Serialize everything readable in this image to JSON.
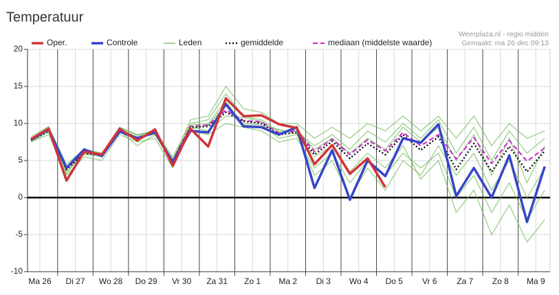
{
  "chart_data": {
    "type": "ensemble-line",
    "title": "Temperatuur",
    "source": "Weerplaza.nl - regio midden",
    "created": "Gemaakt: ma 26 dec 09:13",
    "x": [
      0.25,
      0.75,
      1.25,
      1.75,
      2.25,
      2.75,
      3.25,
      3.75,
      4.25,
      4.75,
      5.25,
      5.75,
      6.25,
      6.75,
      7.25,
      7.75,
      8.25,
      8.75,
      9.25,
      9.75,
      10.25,
      10.75,
      11.25,
      11.75,
      12.25,
      12.75,
      13.25,
      13.75,
      14.25,
      14.75
    ],
    "xlim": [
      0.15,
      14.9
    ],
    "xticks": [
      {
        "value": 0.5,
        "label": "Ma 26"
      },
      {
        "value": 1.5,
        "label": "Di 27"
      },
      {
        "value": 2.5,
        "label": "Wo 28"
      },
      {
        "value": 3.5,
        "label": "Do 29"
      },
      {
        "value": 4.5,
        "label": "Vr 30"
      },
      {
        "value": 5.5,
        "label": "Za 31"
      },
      {
        "value": 6.5,
        "label": "Zo 1"
      },
      {
        "value": 7.5,
        "label": "Ma 2"
      },
      {
        "value": 8.5,
        "label": "Di 3"
      },
      {
        "value": 9.5,
        "label": "Wo 4"
      },
      {
        "value": 10.5,
        "label": "Do 5"
      },
      {
        "value": 11.5,
        "label": "Vr 6"
      },
      {
        "value": 12.5,
        "label": "Za 7"
      },
      {
        "value": 13.5,
        "label": "Zo 8"
      },
      {
        "value": 14.5,
        "label": "Ma 9"
      }
    ],
    "day_lines": [
      1,
      2,
      3,
      4,
      5,
      6,
      7,
      8,
      9,
      10,
      11,
      12,
      13,
      14
    ],
    "ylim": [
      -10,
      20
    ],
    "yticks": [
      -10,
      -5,
      0,
      5,
      10,
      15,
      20
    ],
    "grid": true,
    "zero_line": true,
    "members": {
      "name": "Leden",
      "color": "#6dbb55",
      "series": [
        [
          8,
          9.5,
          4.5,
          6.5,
          6,
          9.5,
          8.5,
          9,
          5.5,
          10,
          10.5,
          14,
          11,
          10.5,
          9,
          9,
          7,
          8.5,
          6.5,
          9,
          7.5,
          10,
          8,
          10.5,
          6,
          9.5,
          5,
          9,
          6,
          8
        ],
        [
          7.5,
          8.5,
          3,
          5.5,
          5,
          8.5,
          7.5,
          8,
          4,
          9,
          8.5,
          10,
          9.5,
          9,
          7.5,
          8,
          4,
          6,
          2,
          5,
          3,
          6,
          4,
          6,
          0,
          3,
          -2,
          2,
          -3,
          1
        ],
        [
          8,
          9,
          4,
          6.5,
          6,
          9.2,
          8.2,
          9.2,
          5,
          10.5,
          11,
          15,
          12,
          11.5,
          10,
          10,
          8,
          9.5,
          8,
          10,
          9,
          11,
          9,
          11,
          8,
          11,
          7,
          10,
          8,
          9
        ],
        [
          7.8,
          9.3,
          3.5,
          6,
          5.5,
          9,
          7,
          8.5,
          4.5,
          9.2,
          9.8,
          12.5,
          10,
          9.8,
          8,
          8.5,
          5.5,
          7,
          3.5,
          6,
          4,
          7,
          2.5,
          5,
          -2,
          1,
          -5,
          -1,
          -6,
          -3
        ],
        [
          7.6,
          8.8,
          4.2,
          5.8,
          5.7,
          8.8,
          8,
          8.6,
          5.2,
          9.6,
          9,
          11,
          10.8,
          10.3,
          8.8,
          9.2,
          6.5,
          8,
          6,
          8,
          6.5,
          9.5,
          7.5,
          9.5,
          5,
          8.5,
          3,
          8,
          2,
          7
        ],
        [
          8.2,
          9.6,
          3.2,
          6.3,
          5.9,
          9.4,
          8.4,
          9,
          4.7,
          9.8,
          10,
          13,
          9.8,
          9.6,
          9.2,
          8.6,
          3,
          5,
          0,
          4,
          1,
          5,
          3,
          7,
          3,
          6,
          1,
          5,
          0,
          4
        ]
      ]
    },
    "series": [
      {
        "name": "Oper.",
        "color": "#d0343a",
        "style": "solid",
        "width": 3.5,
        "values": [
          7.9,
          9.3,
          2.3,
          6.2,
          5.8,
          9.3,
          7.7,
          9.2,
          4.3,
          9.3,
          6.9,
          13.4,
          11,
          11.1,
          9.9,
          9.4,
          4.5,
          7.1,
          3.2,
          5.3,
          1.4,
          null,
          null,
          null,
          null,
          null,
          null,
          null,
          null,
          null
        ]
      },
      {
        "name": "Controle",
        "color": "#3545c8",
        "style": "solid",
        "width": 3.5,
        "values": [
          7.8,
          9.2,
          4,
          6.5,
          5.6,
          8.9,
          8,
          8.8,
          4.8,
          9,
          8.8,
          12.6,
          9.6,
          9.5,
          8.5,
          9.5,
          1.3,
          6.4,
          -0.3,
          5,
          2.9,
          8,
          7.4,
          9.9,
          0.2,
          4,
          0,
          5.7,
          -3.3,
          4.2
        ]
      },
      {
        "name": "gemiddelde",
        "color": "#111111",
        "style": "dotted",
        "width": 2.5,
        "values": [
          7.7,
          9,
          3.8,
          6,
          5.7,
          9,
          8,
          8.7,
          4.8,
          9.5,
          9.6,
          11.5,
          10.3,
          10,
          8.5,
          8.8,
          5.8,
          7.6,
          5.3,
          7.3,
          5.8,
          8.5,
          6.4,
          8.2,
          3.8,
          7.3,
          3.5,
          6.9,
          3.5,
          6.3
        ]
      },
      {
        "name": "mediaan (middelste waarde)",
        "color": "#cc22cc",
        "style": "dashed",
        "width": 2,
        "values": [
          7.8,
          9.1,
          3.9,
          6.1,
          5.8,
          9.1,
          8.1,
          8.8,
          5,
          9.6,
          9.8,
          11.8,
          10.4,
          10.2,
          8.7,
          9,
          6.2,
          7.9,
          5.8,
          7.8,
          6.3,
          8.8,
          7,
          8.5,
          5.2,
          8.1,
          4.6,
          7.7,
          4.9,
          6.7
        ]
      }
    ]
  }
}
